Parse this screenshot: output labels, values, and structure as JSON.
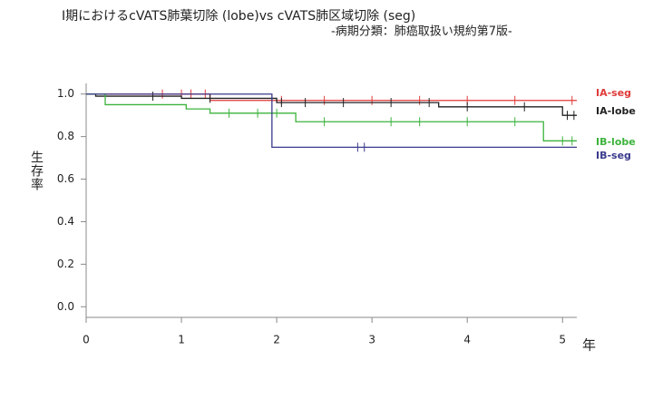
{
  "chart_data": {
    "type": "km",
    "title": "I期におけるcVATS肺葉切除 (lobe)vs cVATS肺区域切除 (seg)",
    "subtitle": "-病期分類：肺癌取扱い規約第7版-",
    "y_label": "生存率",
    "x_label": "年",
    "xlim": [
      0,
      5.15
    ],
    "ylim": [
      -0.05,
      1.05
    ],
    "xticks": [
      0,
      1,
      2,
      3,
      4,
      5
    ],
    "yticks": [
      {
        "value": 0,
        "label": "0.0"
      },
      0.2,
      0.4,
      0.6,
      0.8,
      {
        "value": 1,
        "label": "1.0"
      }
    ],
    "series": [
      {
        "name": "IA-seg",
        "color": "#e03a3a",
        "x": [
          0,
          1.3,
          5.15
        ],
        "values": [
          1,
          0.97,
          0.97
        ],
        "censor_x": [
          0.8,
          1.0,
          1.1,
          1.25,
          2.05,
          2.5,
          3.0,
          3.5,
          4.0,
          4.5,
          5.1
        ],
        "censor_values": [
          1,
          1,
          1,
          1,
          0.97,
          0.97,
          0.97,
          0.97,
          0.97,
          0.97,
          0.97
        ]
      },
      {
        "name": "IA-lobe",
        "color": "#222222",
        "x": [
          0,
          0.1,
          1.0,
          2.0,
          3.7,
          5.0,
          5.15
        ],
        "values": [
          1,
          0.99,
          0.98,
          0.96,
          0.94,
          0.9,
          0.9
        ],
        "censor_x": [
          0.7,
          1.3,
          2.05,
          2.3,
          2.7,
          3.2,
          3.6,
          4.0,
          4.6,
          5.05,
          5.12
        ],
        "censor_values": [
          0.99,
          0.98,
          0.96,
          0.96,
          0.96,
          0.96,
          0.96,
          0.94,
          0.94,
          0.9,
          0.9
        ]
      },
      {
        "name": "IB-lobe",
        "color": "#3cb33c",
        "x": [
          0,
          0.2,
          1.05,
          1.3,
          2.2,
          4.8,
          5.15
        ],
        "values": [
          1,
          0.95,
          0.93,
          0.91,
          0.87,
          0.78,
          0.78
        ],
        "censor_x": [
          1.5,
          1.8,
          2.0,
          2.5,
          3.2,
          3.5,
          4.0,
          4.5,
          5.0,
          5.1
        ],
        "censor_values": [
          0.91,
          0.91,
          0.91,
          0.87,
          0.87,
          0.87,
          0.87,
          0.87,
          0.78,
          0.78
        ]
      },
      {
        "name": "IB-seg",
        "color": "#3a3a8c",
        "x": [
          0,
          1.95,
          5.15
        ],
        "values": [
          1,
          0.75,
          0.75
        ],
        "censor_x": [
          2.85,
          2.92
        ],
        "censor_values": [
          0.75,
          0.75
        ]
      }
    ]
  }
}
